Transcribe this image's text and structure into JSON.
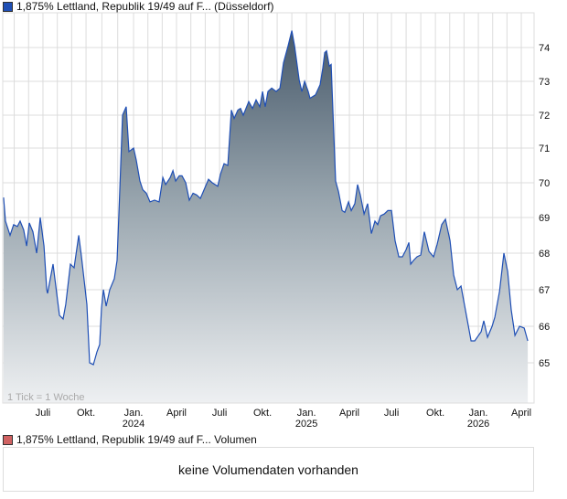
{
  "header": {
    "legend_label": "1,875% Lettland, Republik 19/49 auf F... (Düsseldorf)",
    "legend_color": "#1f4fb5"
  },
  "volume": {
    "legend_label": "1,875% Lettland, Republik 19/49 auf F... Volumen",
    "legend_color": "#d06262",
    "empty_message": "keine Volumendaten vorhanden"
  },
  "chart_data": {
    "type": "area",
    "title": "1,875% Lettland, Republik 19/49 auf F... (Düsseldorf)",
    "note": "1 Tick = 1 Woche",
    "x_unit": "months since start (approx. early April 2023)",
    "xlim": [
      0,
      37
    ],
    "ylim": [
      64.1,
      75.0
    ],
    "y_ticks": [
      65,
      66,
      67,
      68,
      69,
      70,
      71,
      72,
      73,
      74
    ],
    "x_ticks": [
      {
        "m": 2.8,
        "label": "Juli",
        "year": ""
      },
      {
        "m": 5.8,
        "label": "Okt.",
        "year": ""
      },
      {
        "m": 9.11,
        "label": "Jan.",
        "year": "2024"
      },
      {
        "m": 12.1,
        "label": "April",
        "year": ""
      },
      {
        "m": 15.1,
        "label": "Juli",
        "year": ""
      },
      {
        "m": 18.09,
        "label": "Okt.",
        "year": ""
      },
      {
        "m": 21.15,
        "label": "Jan.",
        "year": "2025"
      },
      {
        "m": 24.14,
        "label": "April",
        "year": ""
      },
      {
        "m": 27.07,
        "label": "Juli",
        "year": ""
      },
      {
        "m": 30.13,
        "label": "Okt.",
        "year": ""
      },
      {
        "m": 33.12,
        "label": "Jan.",
        "year": "2026"
      },
      {
        "m": 36.11,
        "label": "April",
        "year": ""
      }
    ],
    "grid": true,
    "series": [
      {
        "name": "1,875% Lettland, Republik 19/49 (Düsseldorf)",
        "color": "#1f4fb5",
        "points": [
          [
            0.06,
            69.58
          ],
          [
            0.19,
            68.9
          ],
          [
            0.51,
            68.5
          ],
          [
            0.76,
            68.8
          ],
          [
            1.02,
            68.75
          ],
          [
            1.21,
            68.9
          ],
          [
            1.46,
            68.65
          ],
          [
            1.66,
            68.2
          ],
          [
            1.85,
            68.85
          ],
          [
            2.1,
            68.6
          ],
          [
            2.36,
            68.0
          ],
          [
            2.61,
            69.0
          ],
          [
            2.87,
            68.2
          ],
          [
            3.06,
            67.0
          ],
          [
            3.12,
            66.9
          ],
          [
            3.5,
            67.7
          ],
          [
            3.95,
            66.3
          ],
          [
            4.2,
            66.2
          ],
          [
            4.39,
            66.6
          ],
          [
            4.71,
            67.7
          ],
          [
            4.97,
            67.6
          ],
          [
            5.29,
            68.5
          ],
          [
            5.48,
            67.9
          ],
          [
            5.86,
            66.6
          ],
          [
            6.05,
            65.0
          ],
          [
            6.31,
            64.95
          ],
          [
            6.56,
            65.3
          ],
          [
            6.75,
            65.5
          ],
          [
            6.88,
            66.5
          ],
          [
            7.01,
            67.0
          ],
          [
            7.2,
            66.55
          ],
          [
            7.45,
            67.0
          ],
          [
            7.77,
            67.3
          ],
          [
            7.96,
            67.8
          ],
          [
            8.09,
            69.1
          ],
          [
            8.15,
            69.8
          ],
          [
            8.34,
            72.0
          ],
          [
            8.6,
            72.25
          ],
          [
            8.79,
            70.9
          ],
          [
            9.11,
            71.0
          ],
          [
            9.3,
            70.65
          ],
          [
            9.55,
            70.05
          ],
          [
            9.75,
            69.8
          ],
          [
            10.0,
            69.7
          ],
          [
            10.25,
            69.45
          ],
          [
            10.57,
            69.5
          ],
          [
            10.89,
            69.45
          ],
          [
            11.15,
            70.15
          ],
          [
            11.34,
            69.95
          ],
          [
            11.66,
            70.15
          ],
          [
            11.85,
            70.35
          ],
          [
            12.04,
            70.05
          ],
          [
            12.29,
            70.2
          ],
          [
            12.48,
            70.2
          ],
          [
            12.74,
            70.0
          ],
          [
            12.99,
            69.5
          ],
          [
            13.25,
            69.7
          ],
          [
            13.5,
            69.65
          ],
          [
            13.76,
            69.55
          ],
          [
            14.33,
            70.1
          ],
          [
            14.59,
            70.0
          ],
          [
            14.97,
            69.9
          ],
          [
            15.16,
            70.25
          ],
          [
            15.41,
            70.55
          ],
          [
            15.67,
            70.5
          ],
          [
            15.92,
            72.15
          ],
          [
            16.11,
            71.9
          ],
          [
            16.37,
            72.15
          ],
          [
            16.56,
            72.2
          ],
          [
            16.75,
            72.0
          ],
          [
            17.13,
            72.4
          ],
          [
            17.39,
            72.2
          ],
          [
            17.64,
            72.45
          ],
          [
            17.9,
            72.25
          ],
          [
            18.09,
            72.7
          ],
          [
            18.28,
            72.25
          ],
          [
            18.47,
            72.7
          ],
          [
            18.73,
            72.8
          ],
          [
            19.04,
            72.7
          ],
          [
            19.3,
            72.8
          ],
          [
            19.55,
            73.55
          ],
          [
            19.87,
            74.05
          ],
          [
            20.13,
            74.5
          ],
          [
            20.32,
            74.05
          ],
          [
            20.64,
            73.05
          ],
          [
            20.83,
            72.7
          ],
          [
            21.02,
            73.0
          ],
          [
            21.27,
            72.7
          ],
          [
            21.4,
            72.5
          ],
          [
            21.78,
            72.6
          ],
          [
            22.1,
            72.9
          ],
          [
            22.29,
            73.4
          ],
          [
            22.42,
            73.85
          ],
          [
            22.55,
            73.9
          ],
          [
            22.74,
            73.45
          ],
          [
            22.87,
            73.5
          ],
          [
            23.06,
            71.35
          ],
          [
            23.18,
            70.05
          ],
          [
            23.38,
            69.75
          ],
          [
            23.63,
            69.2
          ],
          [
            23.82,
            69.15
          ],
          [
            24.08,
            69.45
          ],
          [
            24.27,
            69.2
          ],
          [
            24.52,
            69.4
          ],
          [
            24.71,
            69.95
          ],
          [
            24.9,
            69.65
          ],
          [
            25.16,
            69.1
          ],
          [
            25.41,
            69.4
          ],
          [
            25.67,
            68.55
          ],
          [
            25.92,
            68.9
          ],
          [
            26.11,
            68.8
          ],
          [
            26.31,
            69.05
          ],
          [
            26.56,
            69.1
          ],
          [
            26.82,
            69.2
          ],
          [
            27.07,
            69.2
          ],
          [
            27.32,
            68.35
          ],
          [
            27.58,
            67.9
          ],
          [
            27.83,
            67.9
          ],
          [
            28.09,
            68.1
          ],
          [
            28.28,
            68.3
          ],
          [
            28.41,
            67.7
          ],
          [
            28.6,
            67.8
          ],
          [
            28.85,
            67.9
          ],
          [
            29.11,
            67.95
          ],
          [
            29.36,
            68.6
          ],
          [
            29.68,
            68.05
          ],
          [
            30.0,
            67.9
          ],
          [
            30.25,
            68.25
          ],
          [
            30.57,
            68.8
          ],
          [
            30.83,
            68.95
          ],
          [
            31.15,
            68.35
          ],
          [
            31.4,
            67.4
          ],
          [
            31.66,
            67.0
          ],
          [
            31.91,
            67.1
          ],
          [
            32.29,
            66.3
          ],
          [
            32.61,
            65.6
          ],
          [
            32.87,
            65.6
          ],
          [
            33.31,
            65.85
          ],
          [
            33.5,
            66.15
          ],
          [
            33.76,
            65.7
          ],
          [
            34.08,
            66.0
          ],
          [
            34.27,
            66.25
          ],
          [
            34.59,
            66.95
          ],
          [
            34.9,
            68.0
          ],
          [
            35.16,
            67.5
          ],
          [
            35.41,
            66.45
          ],
          [
            35.67,
            65.75
          ],
          [
            35.99,
            66.0
          ],
          [
            36.31,
            65.95
          ],
          [
            36.56,
            65.6
          ]
        ]
      }
    ]
  }
}
